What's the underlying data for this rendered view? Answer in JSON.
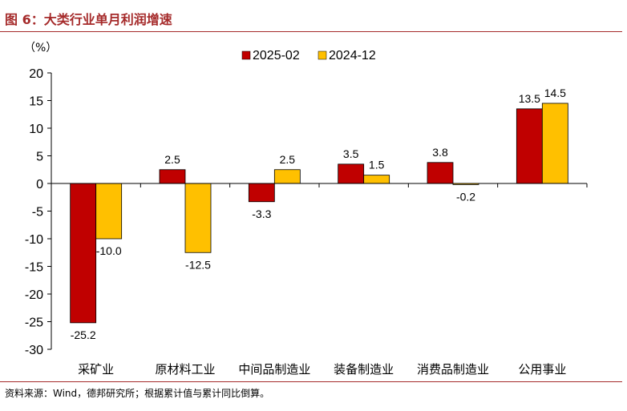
{
  "title": "图 6：大类行业单月利润增速",
  "source": "资料来源：Wind，德邦研究所；根据累计值与累计同比倒算。",
  "chart_data": {
    "type": "bar",
    "unit": "（%）",
    "categories": [
      "采矿业",
      "原材料工业",
      "中间品制造业",
      "装备制造业",
      "消费品制造业",
      "公用事业"
    ],
    "series": [
      {
        "name": "2025-02",
        "color": "#c00000",
        "values": [
          -25.2,
          2.5,
          -3.3,
          3.5,
          3.8,
          13.5
        ]
      },
      {
        "name": "2024-12",
        "color": "#ffc000",
        "values": [
          -10.0,
          -12.5,
          2.5,
          1.5,
          -0.2,
          14.5
        ]
      }
    ],
    "data_labels": [
      [
        "-25.2",
        "2.5",
        "-3.3",
        "3.5",
        "3.8",
        "13.5"
      ],
      [
        "-10.0",
        "-12.5",
        "2.5",
        "1.5",
        "-0.2",
        "14.5"
      ]
    ],
    "ylim": [
      -30,
      20
    ],
    "yticks": [
      20,
      15,
      10,
      5,
      0,
      -5,
      -10,
      -15,
      -20,
      -25,
      -30
    ],
    "legend_position": "top-center",
    "grid": false
  }
}
